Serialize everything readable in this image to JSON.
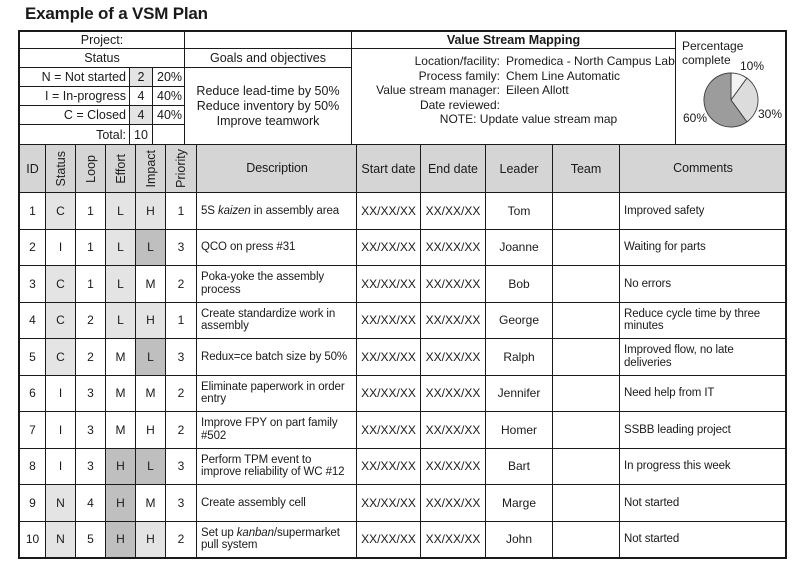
{
  "title": "Example of a VSM Plan",
  "colors": {
    "header_bg": "#d5d5d5",
    "shade_light": "#e4e4e4",
    "shade_mid": "#bfbfbf",
    "border": "#1a1a1a"
  },
  "project_label": "Project:",
  "status_panel": {
    "title": "Status",
    "legend": [
      {
        "label": "N = Not started",
        "count": "2",
        "pct": "20%",
        "count_shaded": true
      },
      {
        "label": "I = In-progress",
        "count": "4",
        "pct": "40%",
        "count_shaded": false
      },
      {
        "label": "C = Closed",
        "count": "4",
        "pct": "40%",
        "count_shaded": true
      }
    ],
    "total_label": "Total:",
    "total_value": "10"
  },
  "goals": {
    "title": "Goals and objectives",
    "items": [
      "Reduce lead-time by 50%",
      "Reduce inventory by 50%",
      "Improve teamwork"
    ]
  },
  "vsm": {
    "title": "Value Stream Mapping",
    "fields": [
      {
        "label": "Location/facility:",
        "value": "Promedica - North Campus Lab"
      },
      {
        "label": "Process family:",
        "value": "Chem Line Automatic"
      },
      {
        "label": "Value stream manager:",
        "value": "Eileen Allott"
      },
      {
        "label": "Date reviewed:",
        "value": ""
      }
    ],
    "note": "NOTE: Update value stream map"
  },
  "pie_panel": {
    "title": "Percentage\ncomplete"
  },
  "chart_data": {
    "type": "pie",
    "title": "Percentage complete",
    "labels": [
      "10%",
      "30%",
      "60%"
    ],
    "values": [
      10,
      30,
      60
    ],
    "colors": [
      "#f3f3f3",
      "#dcdcdc",
      "#9c9c9c"
    ],
    "start_angle_deg": -90,
    "direction": "clockwise"
  },
  "table": {
    "headers": [
      "ID",
      "Status",
      "Loop",
      "Effort",
      "Impact",
      "Priority",
      "Description",
      "Start date",
      "End date",
      "Leader",
      "Team",
      "Comments"
    ],
    "rows": [
      {
        "id": "1",
        "status": "C",
        "loop": "1",
        "effort": "L",
        "impact": "H",
        "priority": "1",
        "desc": [
          [
            "5S "
          ],
          [
            "kaizen",
            true
          ],
          [
            " in assembly area"
          ]
        ],
        "start": "XX/XX/XX",
        "end": "XX/XX/XX",
        "leader": "Tom",
        "team": "",
        "comments": "Improved safety",
        "shade": {
          "status": "light",
          "effort": "light",
          "impact": "light"
        }
      },
      {
        "id": "2",
        "status": "I",
        "loop": "1",
        "effort": "L",
        "impact": "L",
        "priority": "3",
        "desc": [
          [
            "QCO on press #31"
          ]
        ],
        "start": "XX/XX/XX",
        "end": "XX/XX/XX",
        "leader": "Joanne",
        "team": "",
        "comments": "Waiting for parts",
        "shade": {
          "status": "none",
          "effort": "light",
          "impact": "mid"
        }
      },
      {
        "id": "3",
        "status": "C",
        "loop": "1",
        "effort": "L",
        "impact": "M",
        "priority": "2",
        "desc": [
          [
            "Poka-yoke the assembly process"
          ]
        ],
        "start": "XX/XX/XX",
        "end": "XX/XX/XX",
        "leader": "Bob",
        "team": "",
        "comments": "No errors",
        "shade": {
          "status": "light",
          "effort": "light",
          "impact": "none"
        }
      },
      {
        "id": "4",
        "status": "C",
        "loop": "2",
        "effort": "L",
        "impact": "H",
        "priority": "1",
        "desc": [
          [
            "Create standardize work in assembly"
          ]
        ],
        "start": "XX/XX/XX",
        "end": "XX/XX/XX",
        "leader": "George",
        "team": "",
        "comments": "Reduce cycle time by three minutes",
        "shade": {
          "status": "light",
          "effort": "light",
          "impact": "light"
        }
      },
      {
        "id": "5",
        "status": "C",
        "loop": "2",
        "effort": "M",
        "impact": "L",
        "priority": "3",
        "desc": [
          [
            "Redux=ce batch size by 50%"
          ]
        ],
        "start": "XX/XX/XX",
        "end": "XX/XX/XX",
        "leader": "Ralph",
        "team": "",
        "comments": "Improved flow, no late deliveries",
        "shade": {
          "status": "light",
          "effort": "none",
          "impact": "mid"
        }
      },
      {
        "id": "6",
        "status": "I",
        "loop": "3",
        "effort": "M",
        "impact": "M",
        "priority": "2",
        "desc": [
          [
            "Eliminate paperwork in order entry"
          ]
        ],
        "start": "XX/XX/XX",
        "end": "XX/XX/XX",
        "leader": "Jennifer",
        "team": "",
        "comments": "Need help from IT",
        "shade": {
          "status": "none",
          "effort": "none",
          "impact": "none"
        }
      },
      {
        "id": "7",
        "status": "I",
        "loop": "3",
        "effort": "M",
        "impact": "H",
        "priority": "2",
        "desc": [
          [
            "Improve FPY on part family #502"
          ]
        ],
        "start": "XX/XX/XX",
        "end": "XX/XX/XX",
        "leader": "Homer",
        "team": "",
        "comments": "SSBB leading project",
        "shade": {
          "status": "none",
          "effort": "none",
          "impact": "none"
        }
      },
      {
        "id": "8",
        "status": "I",
        "loop": "3",
        "effort": "H",
        "impact": "L",
        "priority": "3",
        "desc": [
          [
            "Perform TPM event to improve reliability of WC #12"
          ]
        ],
        "start": "XX/XX/XX",
        "end": "XX/XX/XX",
        "leader": "Bart",
        "team": "",
        "comments": "In progress this week",
        "shade": {
          "status": "none",
          "effort": "mid",
          "impact": "mid"
        }
      },
      {
        "id": "9",
        "status": "N",
        "loop": "4",
        "effort": "H",
        "impact": "M",
        "priority": "3",
        "desc": [
          [
            "Create assembly cell"
          ]
        ],
        "start": "XX/XX/XX",
        "end": "XX/XX/XX",
        "leader": "Marge",
        "team": "",
        "comments": "Not started",
        "shade": {
          "status": "light",
          "effort": "mid",
          "impact": "none"
        }
      },
      {
        "id": "10",
        "status": "N",
        "loop": "5",
        "effort": "H",
        "impact": "H",
        "priority": "2",
        "desc": [
          [
            "Set up "
          ],
          [
            "kanban",
            true
          ],
          [
            "/supermarket pull system"
          ]
        ],
        "start": "XX/XX/XX",
        "end": "XX/XX/XX",
        "leader": "John",
        "team": "",
        "comments": "Not started",
        "shade": {
          "status": "light",
          "effort": "mid",
          "impact": "light"
        }
      }
    ]
  }
}
